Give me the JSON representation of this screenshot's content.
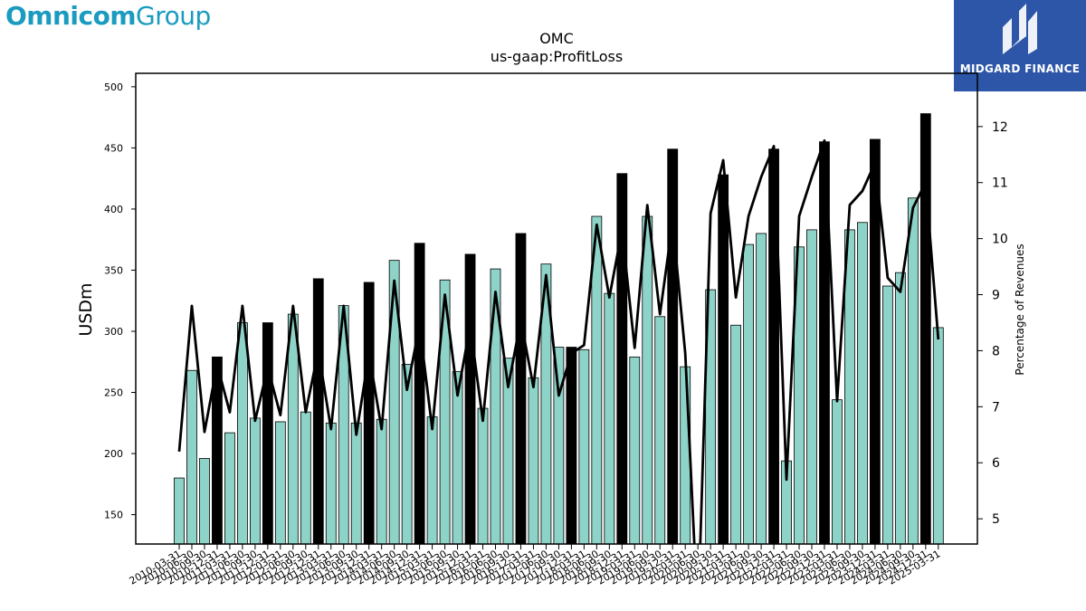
{
  "branding": {
    "company_bold": "Omnicom",
    "company_light": "Group",
    "badge_text": "MIDGARD FINANCE",
    "colors": {
      "company": "#1a9bbf",
      "badge_bg": "#2d56a8"
    }
  },
  "chart_data": {
    "type": "bar",
    "title": "OMC",
    "subtitle": "us-gaap:ProfitLoss",
    "ylabel": "USDm",
    "y2label": "Percentage of Revenues",
    "ylim": [
      126,
      511
    ],
    "y2lim": [
      4.55,
      12.95
    ],
    "yticks": [
      150,
      200,
      250,
      300,
      350,
      400,
      450,
      500
    ],
    "y2ticks": [
      5,
      6,
      7,
      8,
      9,
      10,
      11,
      12
    ],
    "colors": {
      "quarterly_bar": "#8dd3c7",
      "annual_bar": "#000000",
      "line": "#000000"
    },
    "categories": [
      "2010-03-31",
      "2010-06-30",
      "2010-09-30",
      "2010-12-31",
      "2011-03-31",
      "2011-06-30",
      "2011-09-30",
      "2011-12-31",
      "2012-03-31",
      "2012-06-30",
      "2012-09-30",
      "2012-12-31",
      "2013-03-31",
      "2013-06-30",
      "2013-09-30",
      "2013-12-31",
      "2014-03-31",
      "2014-06-30",
      "2014-09-30",
      "2014-12-31",
      "2015-03-31",
      "2015-06-30",
      "2015-09-30",
      "2015-12-31",
      "2016-03-31",
      "2016-06-30",
      "2016-09-30",
      "2016-12-31",
      "2017-03-31",
      "2017-06-30",
      "2017-09-30",
      "2017-12-31",
      "2018-03-31",
      "2018-06-30",
      "2018-09-30",
      "2018-12-31",
      "2019-03-31",
      "2019-06-30",
      "2019-09-30",
      "2019-12-31",
      "2020-03-31",
      "2020-06-30",
      "2020-09-30",
      "2020-12-31",
      "2021-03-31",
      "2021-06-30",
      "2021-09-30",
      "2021-12-31",
      "2022-03-31",
      "2022-06-30",
      "2022-09-30",
      "2022-12-31",
      "2023-03-31",
      "2023-06-30",
      "2023-09-30",
      "2023-12-31",
      "2024-03-31",
      "2024-06-30",
      "2024-09-30",
      "2024-12-31",
      "2025-03-31"
    ],
    "series": [
      {
        "name": "",
        "kind": "bar",
        "axis": "left",
        "values": [
          180,
          268,
          196,
          279,
          217,
          307,
          229,
          307,
          226,
          314,
          234,
          343,
          225,
          321,
          225,
          340,
          228,
          358,
          273,
          372,
          230,
          342,
          267,
          363,
          237,
          351,
          278,
          380,
          262,
          355,
          287,
          287,
          285,
          394,
          331,
          429,
          279,
          394,
          312,
          449,
          271,
          110,
          334,
          428,
          305,
          371,
          380,
          449,
          194,
          369,
          383,
          455,
          244,
          383,
          389,
          457,
          337,
          348,
          409,
          478,
          303
        ],
        "is_annual": [
          0,
          0,
          0,
          1,
          0,
          0,
          0,
          1,
          0,
          0,
          0,
          1,
          0,
          0,
          0,
          1,
          0,
          0,
          0,
          1,
          0,
          0,
          0,
          1,
          0,
          0,
          0,
          1,
          0,
          0,
          0,
          1,
          0,
          0,
          0,
          1,
          0,
          0,
          0,
          1,
          0,
          0,
          0,
          1,
          0,
          0,
          0,
          1,
          0,
          0,
          0,
          1,
          0,
          0,
          0,
          1,
          0,
          0,
          0,
          1,
          0
        ]
      },
      {
        "name": "",
        "kind": "line",
        "axis": "right",
        "values": [
          6.2,
          8.8,
          6.55,
          7.75,
          6.9,
          8.8,
          6.75,
          7.7,
          6.85,
          8.8,
          6.9,
          8.0,
          6.6,
          8.8,
          6.5,
          7.95,
          6.6,
          9.25,
          7.3,
          8.45,
          6.6,
          9.0,
          7.2,
          8.45,
          6.75,
          9.05,
          7.35,
          8.55,
          7.35,
          9.35,
          7.2,
          7.95,
          8.1,
          10.25,
          8.95,
          10.15,
          8.05,
          10.6,
          8.65,
          10.3,
          7.95,
          3.2,
          10.45,
          11.4,
          8.95,
          10.4,
          11.1,
          11.65,
          5.7,
          10.4,
          11.1,
          11.75,
          7.1,
          10.6,
          10.85,
          11.35,
          9.3,
          9.05,
          10.55,
          11.0,
          8.2
        ]
      }
    ],
    "grid": false,
    "legend": "none"
  }
}
